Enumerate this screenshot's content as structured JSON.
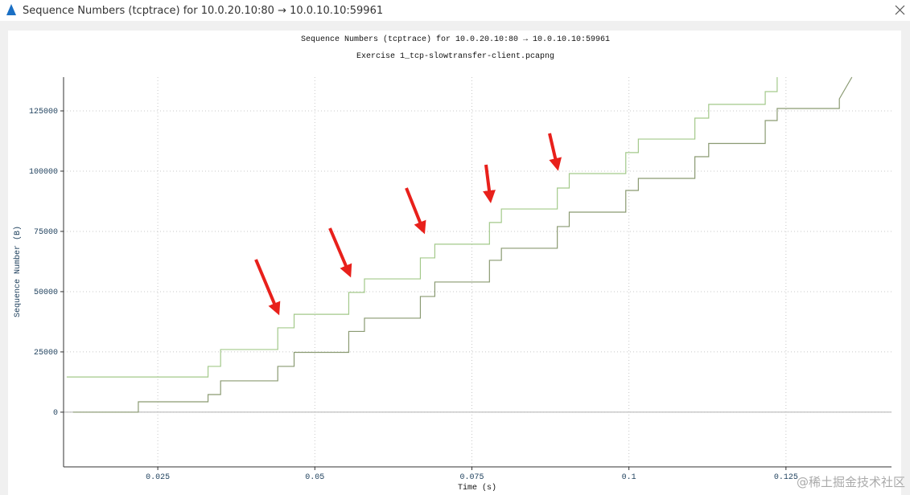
{
  "window": {
    "title": "Sequence Numbers (tcptrace) for 10.0.20.10:80 → 10.0.10.10:59961"
  },
  "watermark": "@稀土掘金技术社区",
  "chart_data": {
    "type": "line",
    "title": "Sequence Numbers (tcptrace) for 10.0.20.10:80 → 10.0.10.10:59961",
    "subtitle": "Exercise 1_tcp-slowtransfer-client.pcapng",
    "x_label": "Time (s)",
    "y_label": "Sequence Number (B)",
    "xlim": [
      0.01,
      0.1418
    ],
    "ylim": [
      -22700,
      139000
    ],
    "xticks": [
      0.025,
      0.05,
      0.075,
      0.1,
      0.125
    ],
    "yticks": [
      0,
      25000,
      50000,
      75000,
      100000,
      125000
    ],
    "grid": true,
    "series": [
      {
        "color": "#a3c98a",
        "x": [
          0.0105,
          0.033,
          0.033,
          0.035,
          0.035,
          0.0441,
          0.0441,
          0.0467,
          0.0467,
          0.0554,
          0.0554,
          0.0579,
          0.0579,
          0.0668,
          0.0668,
          0.0691,
          0.0691,
          0.0778,
          0.0778,
          0.0797,
          0.0797,
          0.0886,
          0.0886,
          0.0905,
          0.0905,
          0.0995,
          0.0995,
          0.1015,
          0.1015,
          0.1105,
          0.1105,
          0.1127,
          0.1127,
          0.1217,
          0.1217,
          0.1236,
          0.1236
        ],
        "values": [
          14600,
          14600,
          19000,
          19000,
          26000,
          26000,
          35000,
          35000,
          40600,
          40600,
          49700,
          49700,
          55300,
          55300,
          64000,
          64000,
          69700,
          69700,
          78700,
          78700,
          84300,
          84300,
          93000,
          93000,
          99000,
          99000,
          107700,
          107700,
          113300,
          113300,
          122000,
          122000,
          127700,
          127700,
          133000,
          133000,
          139000
        ]
      },
      {
        "color": "#8a9a72",
        "x": [
          0.0115,
          0.0219,
          0.0219,
          0.033,
          0.033,
          0.035,
          0.035,
          0.0441,
          0.0441,
          0.0467,
          0.0467,
          0.0554,
          0.0554,
          0.0579,
          0.0579,
          0.0668,
          0.0668,
          0.0691,
          0.0691,
          0.0778,
          0.0778,
          0.0797,
          0.0797,
          0.0886,
          0.0886,
          0.0905,
          0.0905,
          0.0995,
          0.0995,
          0.1015,
          0.1015,
          0.1105,
          0.1105,
          0.1127,
          0.1127,
          0.1217,
          0.1217,
          0.1236,
          0.1236,
          0.1335,
          0.1335,
          0.1355
        ],
        "values": [
          0,
          0,
          4300,
          4300,
          7300,
          7300,
          13000,
          13000,
          19000,
          19000,
          24800,
          24800,
          33500,
          33500,
          39000,
          39000,
          48000,
          48000,
          54000,
          54000,
          63000,
          63000,
          68000,
          68000,
          77000,
          77000,
          83000,
          83000,
          92000,
          92000,
          97000,
          97000,
          106000,
          106000,
          111500,
          111500,
          121000,
          121000,
          126000,
          126000,
          130000,
          139000
        ]
      }
    ]
  }
}
